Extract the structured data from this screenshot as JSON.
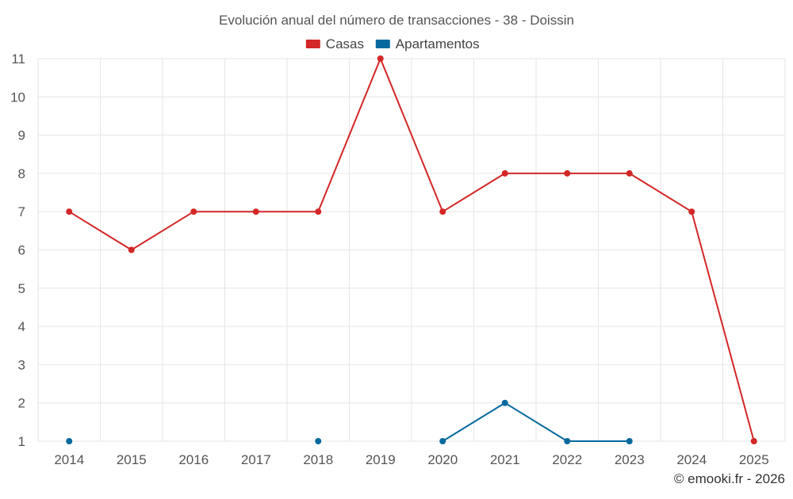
{
  "chart_data": {
    "type": "line",
    "title": "Evolución anual del número de transacciones - 38 - Doissin",
    "categories": [
      "2014",
      "2015",
      "2016",
      "2017",
      "2018",
      "2019",
      "2020",
      "2021",
      "2022",
      "2023",
      "2024",
      "2025"
    ],
    "series": [
      {
        "name": "Casas",
        "color": "#d32626",
        "values": [
          7,
          6,
          7,
          7,
          7,
          11,
          7,
          8,
          8,
          8,
          7,
          1
        ]
      },
      {
        "name": "Apartamentos",
        "color": "#06699e",
        "values": [
          1,
          null,
          null,
          null,
          1,
          null,
          1,
          2,
          1,
          1,
          null,
          null
        ]
      }
    ],
    "ylim": [
      1,
      11
    ],
    "yticks": [
      1,
      2,
      3,
      4,
      5,
      6,
      7,
      8,
      9,
      10,
      11
    ],
    "xlabel": "",
    "ylabel": "",
    "grid": true,
    "legend": "top-center"
  },
  "credit": "© emooki.fr - 2026"
}
